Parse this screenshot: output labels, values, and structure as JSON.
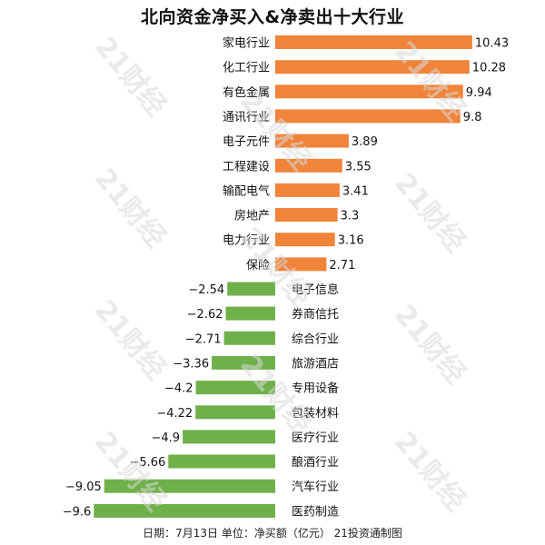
{
  "chart_data": {
    "type": "bar",
    "title": "北向资金净买入&净卖出十大行业",
    "footer": "日期：7月13日 单位：净买额（亿元） 21投资通制图",
    "watermark": "21财经",
    "colors": {
      "positive": "#f0843a",
      "negative": "#6fb04a"
    },
    "categories": [
      "家电行业",
      "化工行业",
      "有色金属",
      "通讯行业",
      "电子元件",
      "工程建设",
      "输配电气",
      "房地产",
      "电力行业",
      "保险",
      "电子信息",
      "券商信托",
      "综合行业",
      "旅游酒店",
      "专用设备",
      "包装材料",
      "医疗行业",
      "酿酒行业",
      "汽车行业",
      "医药制造"
    ],
    "values": [
      10.43,
      10.28,
      9.94,
      9.8,
      3.89,
      3.55,
      3.41,
      3.3,
      3.16,
      2.71,
      -2.54,
      -2.62,
      -2.71,
      -3.36,
      -4.2,
      -4.22,
      -4.9,
      -5.66,
      -9.05,
      -9.6
    ],
    "value_labels": [
      "10.43",
      "10.28",
      "9.94",
      "9.8",
      "3.89",
      "3.55",
      "3.41",
      "3.3",
      "3.16",
      "2.71",
      "−2.54",
      "−2.62",
      "−2.71",
      "−3.36",
      "−4.2",
      "−4.22",
      "−4.9",
      "−5.66",
      "−9.05",
      "−9.6"
    ]
  }
}
